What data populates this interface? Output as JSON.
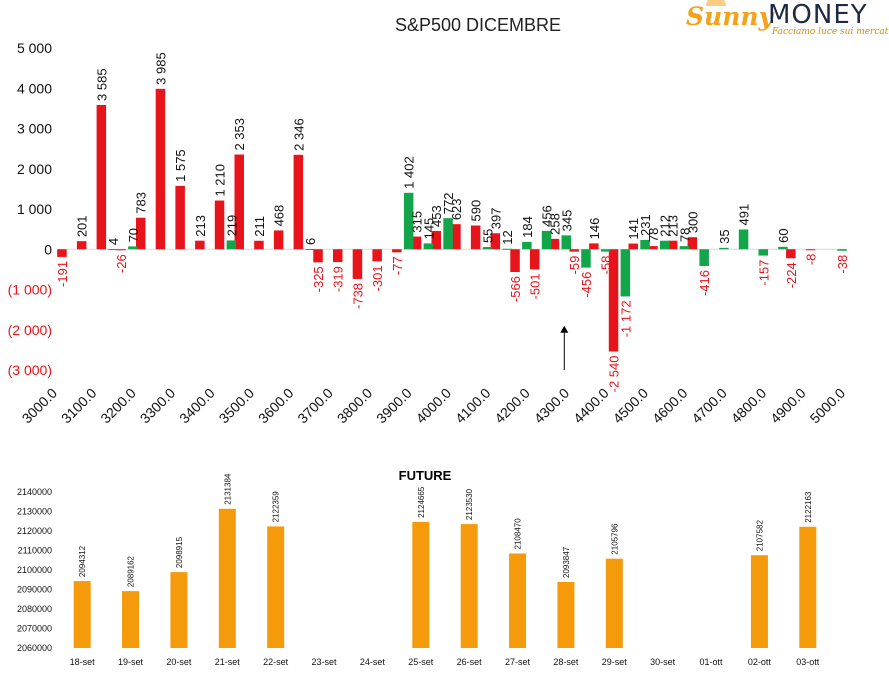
{
  "logo": {
    "brand_left": "Sunny",
    "brand_right": "MONEY",
    "tagline": "Facciamo luce sui mercati"
  },
  "colors": {
    "negative": "#e8141c",
    "positive": "#13a54a",
    "future": "#f59a0b",
    "axis": "#d9d9d9",
    "text": "#000000"
  },
  "chart_data": [
    {
      "type": "bar",
      "title": "S&P500 DICEMBRE",
      "ylim": [
        -3000,
        5000
      ],
      "yticks": [
        5000,
        4000,
        3000,
        2000,
        1000,
        0,
        -1000,
        -2000,
        -3000
      ],
      "ytick_labels": [
        "5 000",
        "4 000",
        "3 000",
        "2 000",
        "1 000",
        "0",
        "(1 000)",
        "(2 000)",
        "(3 000)"
      ],
      "xlim": [
        3000,
        5000
      ],
      "xticks": [
        3000,
        3100,
        3200,
        3300,
        3400,
        3500,
        3600,
        3700,
        3800,
        3900,
        4000,
        4100,
        4200,
        4300,
        4400,
        4500,
        4600,
        4700,
        4800,
        4900,
        5000
      ],
      "xtick_labels": [
        "3000.0",
        "3100.0",
        "3200.0",
        "3300.0",
        "3400.0",
        "3500.0",
        "3600.0",
        "3700.0",
        "3800.0",
        "3900.0",
        "4000.0",
        "4100.0",
        "4200.0",
        "4300.0",
        "4400.0",
        "4500.0",
        "4600.0",
        "4700.0",
        "4800.0",
        "4900.0",
        "5000.0"
      ],
      "annotation": {
        "type": "arrow",
        "x": 4285,
        "y_from": -3000,
        "y_to": -1900
      },
      "series": [
        {
          "color": "#e8141c",
          "bars": [
            {
              "x": 3010,
              "value": -191,
              "label": "-191"
            },
            {
              "x": 3060,
              "value": 201,
              "label": "201"
            },
            {
              "x": 3110,
              "value": 3585,
              "label": "3 585"
            },
            {
              "x": 3160,
              "value": -26,
              "label": "-26"
            },
            {
              "x": 3210,
              "value": 783,
              "label": "783"
            },
            {
              "x": 3260,
              "value": 3985,
              "label": "3 985"
            },
            {
              "x": 3310,
              "value": 1575,
              "label": "1 575"
            },
            {
              "x": 3360,
              "value": 213,
              "label": "213"
            },
            {
              "x": 3410,
              "value": 1210,
              "label": "1 210"
            },
            {
              "x": 3460,
              "value": 2353,
              "label": "2 353"
            },
            {
              "x": 3510,
              "value": 211,
              "label": "211"
            },
            {
              "x": 3560,
              "value": 468,
              "label": "468"
            },
            {
              "x": 3610,
              "value": 2346,
              "label": "2 346"
            },
            {
              "x": 3660,
              "value": -325,
              "label": "-325"
            },
            {
              "x": 3710,
              "value": -319,
              "label": "-319"
            },
            {
              "x": 3760,
              "value": -738,
              "label": "-738"
            },
            {
              "x": 3810,
              "value": -301,
              "label": "-301"
            },
            {
              "x": 3860,
              "value": -77,
              "label": "-77"
            },
            {
              "x": 3910,
              "value": 315,
              "label": "315"
            },
            {
              "x": 3960,
              "value": 453,
              "label": "453"
            },
            {
              "x": 4010,
              "value": 623,
              "label": "623"
            },
            {
              "x": 4060,
              "value": 590,
              "label": "590"
            },
            {
              "x": 4110,
              "value": 397,
              "label": "397"
            },
            {
              "x": 4160,
              "value": -566,
              "label": "-566"
            },
            {
              "x": 4210,
              "value": -501,
              "label": "-501"
            },
            {
              "x": 4260,
              "value": 258,
              "label": "258"
            },
            {
              "x": 4310,
              "value": -59,
              "label": "-59"
            },
            {
              "x": 4360,
              "value": 146,
              "label": "146"
            },
            {
              "x": 4410,
              "value": -2540,
              "label": "-2 540"
            },
            {
              "x": 4460,
              "value": 141,
              "label": "141"
            },
            {
              "x": 4510,
              "value": 78,
              "label": "78"
            },
            {
              "x": 4560,
              "value": 213,
              "label": "213"
            },
            {
              "x": 4610,
              "value": 300,
              "label": "300"
            },
            {
              "x": 4860,
              "value": -224,
              "label": "-224"
            },
            {
              "x": 4910,
              "value": -8,
              "label": "-8"
            }
          ]
        },
        {
          "color": "#13a54a",
          "bars": [
            {
              "x": 3140,
              "value": 4,
              "label": "4"
            },
            {
              "x": 3190,
              "value": 70,
              "label": "70"
            },
            {
              "x": 3440,
              "value": 219,
              "label": "219"
            },
            {
              "x": 3640,
              "value": 6,
              "label": "6"
            },
            {
              "x": 3890,
              "value": 1402,
              "label": "1 402"
            },
            {
              "x": 3940,
              "value": 145,
              "label": "145"
            },
            {
              "x": 3990,
              "value": 772,
              "label": "772"
            },
            {
              "x": 4090,
              "value": 55,
              "label": "55"
            },
            {
              "x": 4140,
              "value": 12,
              "label": "12"
            },
            {
              "x": 4190,
              "value": 184,
              "label": "184"
            },
            {
              "x": 4240,
              "value": 456,
              "label": "456"
            },
            {
              "x": 4290,
              "value": 345,
              "label": "345"
            },
            {
              "x": 4340,
              "value": -456,
              "label": "-456"
            },
            {
              "x": 4390,
              "value": -58,
              "label": "-58"
            },
            {
              "x": 4440,
              "value": -1172,
              "label": "-1 172"
            },
            {
              "x": 4490,
              "value": 231,
              "label": "231"
            },
            {
              "x": 4540,
              "value": 212,
              "label": "212"
            },
            {
              "x": 4590,
              "value": 78,
              "label": "78"
            },
            {
              "x": 4640,
              "value": -416,
              "label": "-416"
            },
            {
              "x": 4690,
              "value": 35,
              "label": "35"
            },
            {
              "x": 4740,
              "value": 491,
              "label": "491"
            },
            {
              "x": 4790,
              "value": -157,
              "label": "-157"
            },
            {
              "x": 4840,
              "value": 60,
              "label": "60"
            },
            {
              "x": 4990,
              "value": -38,
              "label": "-38"
            }
          ]
        }
      ]
    },
    {
      "type": "bar",
      "title": "FUTURE",
      "ylim": [
        2060000,
        2140000
      ],
      "yticks": [
        2060000,
        2070000,
        2080000,
        2090000,
        2100000,
        2110000,
        2120000,
        2130000,
        2140000
      ],
      "ytick_labels": [
        "2060000",
        "2070000",
        "2080000",
        "2090000",
        "2100000",
        "2110000",
        "2120000",
        "2130000",
        "2140000"
      ],
      "categories": [
        "18-set",
        "19-set",
        "20-set",
        "21-set",
        "22-set",
        "23-set",
        "24-set",
        "25-set",
        "26-set",
        "27-set",
        "28-set",
        "29-set",
        "30-set",
        "01-ott",
        "02-ott",
        "03-ott"
      ],
      "values": [
        2094312,
        2089162,
        2098915,
        2131384,
        2122359,
        null,
        null,
        2124665,
        2123530,
        2108470,
        2093847,
        2105796,
        null,
        null,
        2107582,
        2122163
      ],
      "value_labels": [
        "2094312",
        "2089162",
        "2098915",
        "2131384",
        "2122359",
        "",
        "",
        "2124665",
        "2123530",
        "2108470",
        "2093847",
        "2105796",
        "",
        "",
        "2107582",
        "2122163"
      ]
    }
  ]
}
